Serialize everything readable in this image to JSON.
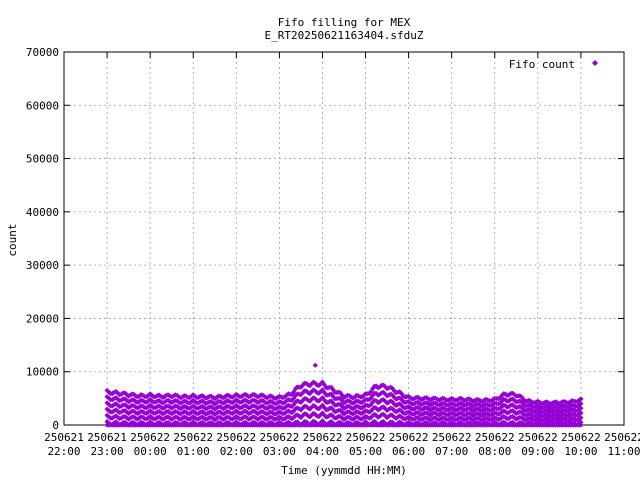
{
  "chart_data": {
    "type": "scatter",
    "title": "Fifo filling for MEX",
    "subtitle": "E_RT20250621163404.sfduZ",
    "xlabel": "Time (yymmdd HH:MM)",
    "ylabel": "count",
    "legend_position": "top-right",
    "grid": true,
    "ylim": [
      0,
      70000
    ],
    "y_ticks": [
      "0",
      "10000",
      "20000",
      "30000",
      "40000",
      "50000",
      "60000",
      "70000"
    ],
    "x_ticks": [
      {
        "date": "250621",
        "time": "22:00"
      },
      {
        "date": "250621",
        "time": "23:00"
      },
      {
        "date": "250622",
        "time": "00:00"
      },
      {
        "date": "250622",
        "time": "01:00"
      },
      {
        "date": "250622",
        "time": "02:00"
      },
      {
        "date": "250622",
        "time": "03:00"
      },
      {
        "date": "250622",
        "time": "04:00"
      },
      {
        "date": "250622",
        "time": "05:00"
      },
      {
        "date": "250622",
        "time": "06:00"
      },
      {
        "date": "250622",
        "time": "07:00"
      },
      {
        "date": "250622",
        "time": "08:00"
      },
      {
        "date": "250622",
        "time": "09:00"
      },
      {
        "date": "250622",
        "time": "10:00"
      },
      {
        "date": "250622",
        "time": "11:00"
      }
    ],
    "xlim": [
      "250621 22:00",
      "250622 11:00"
    ],
    "series": [
      {
        "name": "Fifo count",
        "color": "#9400d3",
        "marker": "diamond",
        "x": [
          "250621 23:00",
          "250621 23:15",
          "250621 23:30",
          "250621 23:45",
          "250622 00:00",
          "250622 00:15",
          "250622 00:30",
          "250622 00:45",
          "250622 01:00",
          "250622 01:15",
          "250622 01:30",
          "250622 01:45",
          "250622 02:00",
          "250622 02:15",
          "250622 02:30",
          "250622 02:45",
          "250622 03:00",
          "250622 03:15",
          "250622 03:30",
          "250622 03:45",
          "250622 04:00",
          "250622 04:15",
          "250622 04:30",
          "250622 04:45",
          "250622 05:00",
          "250622 05:15",
          "250622 05:30",
          "250622 05:45",
          "250622 06:00",
          "250622 06:15",
          "250622 06:30",
          "250622 06:45",
          "250622 07:00",
          "250622 07:15",
          "250622 07:30",
          "250622 07:45",
          "250622 08:00",
          "250622 08:15",
          "250622 08:30",
          "250622 08:45",
          "250622 09:00",
          "250622 09:15",
          "250622 09:30",
          "250622 09:45",
          "250622 10:00"
        ],
        "y_max": [
          7000,
          6800,
          6500,
          6200,
          6300,
          6100,
          6300,
          6000,
          6100,
          6000,
          5900,
          6100,
          6200,
          6300,
          6300,
          6000,
          5800,
          6500,
          8500,
          8800,
          8700,
          7500,
          6200,
          6000,
          6300,
          8300,
          8200,
          7000,
          5800,
          5700,
          5600,
          5500,
          5400,
          5500,
          5300,
          5200,
          5400,
          6600,
          6500,
          5100,
          4800,
          4700,
          4800,
          4900,
          5300
        ],
        "y_min": 0,
        "peak": {
          "x": "250622 03:50",
          "y": 11200
        }
      }
    ]
  }
}
